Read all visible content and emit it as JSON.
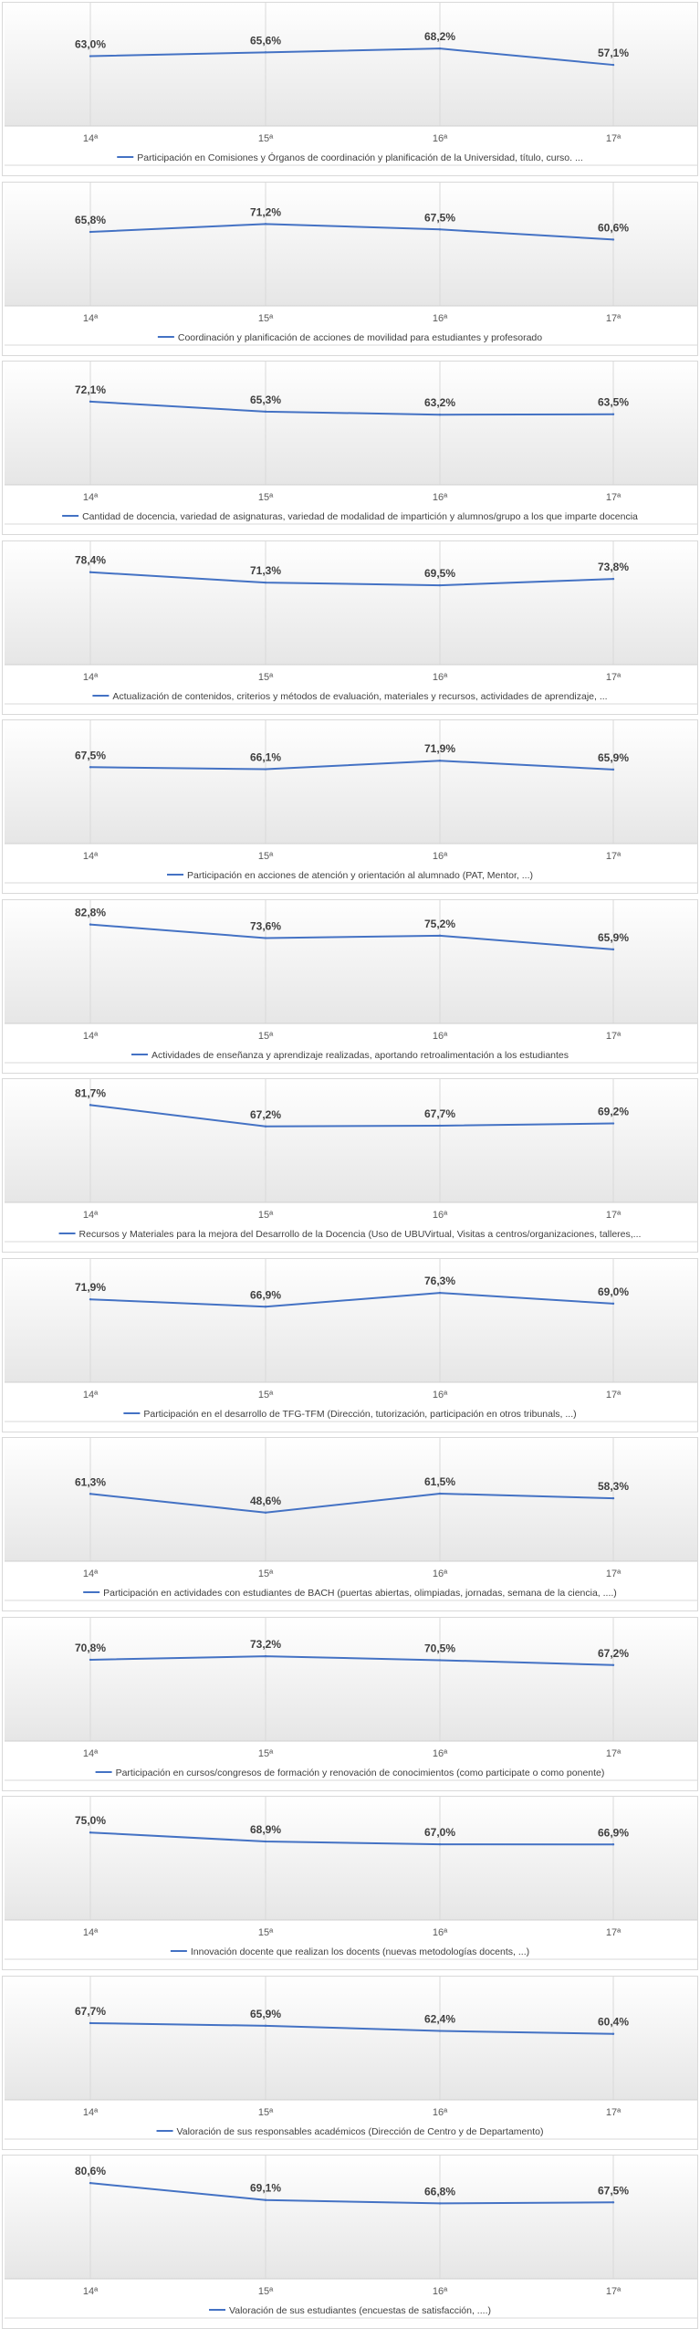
{
  "chart_data": [
    {
      "type": "line",
      "categories": [
        "14ª",
        "15ª",
        "16ª",
        "17ª"
      ],
      "values": [
        63.0,
        65.6,
        68.2,
        57.1
      ],
      "labels": [
        "63,0%",
        "65,6%",
        "68,2%",
        "57,1%"
      ],
      "legend": "Participación en Comisiones y Órganos de coordinación y planificación de la Universidad, título, curso. ..."
    },
    {
      "type": "line",
      "categories": [
        "14ª",
        "15ª",
        "16ª",
        "17ª"
      ],
      "values": [
        65.8,
        71.2,
        67.5,
        60.6
      ],
      "labels": [
        "65,8%",
        "71,2%",
        "67,5%",
        "60,6%"
      ],
      "legend": "Coordinación y planificación de acciones de movilidad para estudiantes y profesorado"
    },
    {
      "type": "line",
      "categories": [
        "14ª",
        "15ª",
        "16ª",
        "17ª"
      ],
      "values": [
        72.1,
        65.3,
        63.2,
        63.5
      ],
      "labels": [
        "72,1%",
        "65,3%",
        "63,2%",
        "63,5%"
      ],
      "legend": "Cantidad de docencia, variedad de asignaturas, variedad de modalidad de impartición y alumnos/grupo a los que imparte docencia"
    },
    {
      "type": "line",
      "categories": [
        "14ª",
        "15ª",
        "16ª",
        "17ª"
      ],
      "values": [
        78.4,
        71.3,
        69.5,
        73.8
      ],
      "labels": [
        "78,4%",
        "71,3%",
        "69,5%",
        "73,8%"
      ],
      "legend": "Actualización de contenidos, criterios y métodos de evaluación, materiales y recursos, actividades de aprendizaje, ..."
    },
    {
      "type": "line",
      "categories": [
        "14ª",
        "15ª",
        "16ª",
        "17ª"
      ],
      "values": [
        67.5,
        66.1,
        71.9,
        65.9
      ],
      "labels": [
        "67,5%",
        "66,1%",
        "71,9%",
        "65,9%"
      ],
      "legend": "Participación en acciones de atención y orientación al alumnado (PAT, Mentor, ...)"
    },
    {
      "type": "line",
      "categories": [
        "14ª",
        "15ª",
        "16ª",
        "17ª"
      ],
      "values": [
        82.8,
        73.6,
        75.2,
        65.9
      ],
      "labels": [
        "82,8%",
        "73,6%",
        "75,2%",
        "65,9%"
      ],
      "legend": "Actividades de enseñanza y aprendizaje realizadas, aportando retroalimentación a los estudiantes"
    },
    {
      "type": "line",
      "categories": [
        "14ª",
        "15ª",
        "16ª",
        "17ª"
      ],
      "values": [
        81.7,
        67.2,
        67.7,
        69.2
      ],
      "labels": [
        "81,7%",
        "67,2%",
        "67,7%",
        "69,2%"
      ],
      "legend": "Recursos y Materiales para la mejora del Desarrollo de la Docencia (Uso de UBUVirtual, Visitas a centros/organizaciones, talleres,..."
    },
    {
      "type": "line",
      "categories": [
        "14ª",
        "15ª",
        "16ª",
        "17ª"
      ],
      "values": [
        71.9,
        66.9,
        76.3,
        69.0
      ],
      "labels": [
        "71,9%",
        "66,9%",
        "76,3%",
        "69,0%"
      ],
      "legend": "Participación en el desarrollo de TFG-TFM (Dirección, tutorización, participación en otros tribunals, ...)"
    },
    {
      "type": "line",
      "categories": [
        "14ª",
        "15ª",
        "16ª",
        "17ª"
      ],
      "values": [
        61.3,
        48.6,
        61.5,
        58.3
      ],
      "labels": [
        "61,3%",
        "48,6%",
        "61,5%",
        "58,3%"
      ],
      "legend": "Participación en actividades con estudiantes de BACH (puertas abiertas, olimpiadas, jornadas, semana de la ciencia, ....)"
    },
    {
      "type": "line",
      "categories": [
        "14ª",
        "15ª",
        "16ª",
        "17ª"
      ],
      "values": [
        70.8,
        73.2,
        70.5,
        67.2
      ],
      "labels": [
        "70,8%",
        "73,2%",
        "70,5%",
        "67,2%"
      ],
      "legend": "Participación en cursos/congresos de formación y renovación de conocimientos (como participate o como ponente)"
    },
    {
      "type": "line",
      "categories": [
        "14ª",
        "15ª",
        "16ª",
        "17ª"
      ],
      "values": [
        75.0,
        68.9,
        67.0,
        66.9
      ],
      "labels": [
        "75,0%",
        "68,9%",
        "67,0%",
        "66,9%"
      ],
      "legend": "Innovación docente que realizan los docents (nuevas metodologías docents, ...)"
    },
    {
      "type": "line",
      "categories": [
        "14ª",
        "15ª",
        "16ª",
        "17ª"
      ],
      "values": [
        67.7,
        65.9,
        62.4,
        60.4
      ],
      "labels": [
        "67,7%",
        "65,9%",
        "62,4%",
        "60,4%"
      ],
      "legend": "Valoración de sus responsables académicos (Dirección de Centro y de Departamento)"
    },
    {
      "type": "line",
      "categories": [
        "14ª",
        "15ª",
        "16ª",
        "17ª"
      ],
      "values": [
        80.6,
        69.1,
        66.8,
        67.5
      ],
      "labels": [
        "80,6%",
        "69,1%",
        "66,8%",
        "67,5%"
      ],
      "legend": "Valoración de sus estudiantes (encuestas de satisfacción, ....)"
    }
  ],
  "colors": {
    "line": "#4472c4",
    "label": "#404040",
    "tick": "#595959",
    "grid": "#d9d9d9",
    "plot_top": "#ffffff",
    "plot_bottom": "#e6e6e6"
  }
}
